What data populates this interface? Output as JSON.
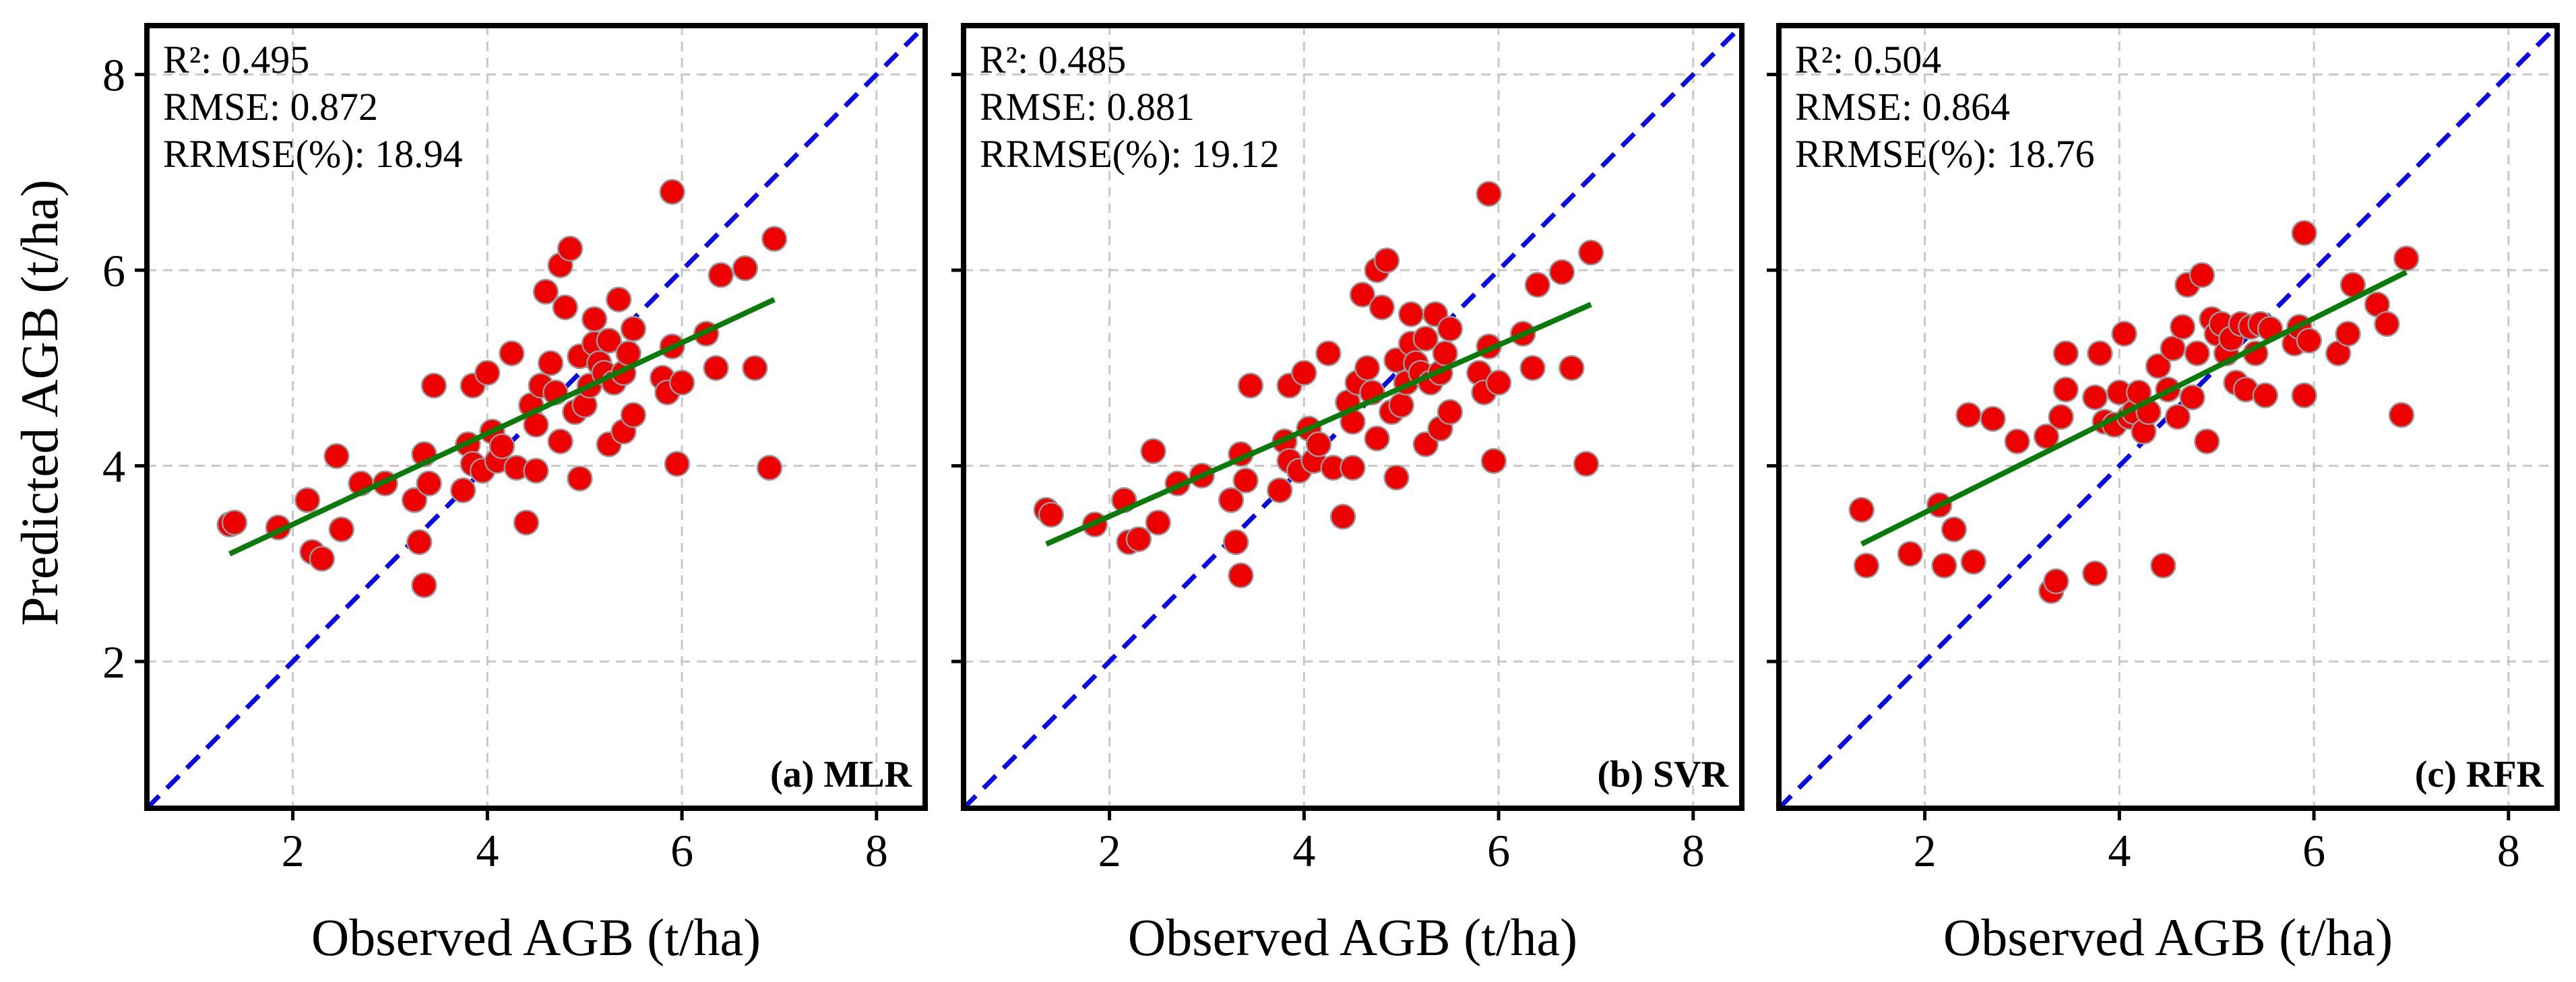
{
  "figure": {
    "y_axis_title": "Predicted AGB (t/ha)",
    "x_axis_title": "Observed AGB (t/ha)"
  },
  "colors": {
    "point_fill": "#ee0000",
    "point_stroke": "#999999",
    "fit_line": "#0a7a0a",
    "identity_line": "#0a0ae6",
    "grid": "#c8c8c8"
  },
  "chart_data": [
    {
      "type": "scatter",
      "label": "(a) MLR",
      "stats": {
        "r2": "R²: 0.495",
        "rmse": "RMSE: 0.872",
        "rrmse": "RRMSE(%): 18.94"
      },
      "xlim": [
        0.5,
        8.5
      ],
      "ylim": [
        0.5,
        8.5
      ],
      "xticks": [
        2,
        4,
        6,
        8
      ],
      "yticks": [
        2,
        4,
        6,
        8
      ],
      "grid": true,
      "identity_line": true,
      "fit_line": {
        "x": [
          1.35,
          6.95
        ],
        "y": [
          3.1,
          5.7
        ]
      },
      "points": [
        [
          1.35,
          3.4
        ],
        [
          1.4,
          3.42
        ],
        [
          1.85,
          3.37
        ],
        [
          2.15,
          3.65
        ],
        [
          2.2,
          3.12
        ],
        [
          2.3,
          3.05
        ],
        [
          2.45,
          4.1
        ],
        [
          2.5,
          3.35
        ],
        [
          2.7,
          3.82
        ],
        [
          2.95,
          3.82
        ],
        [
          3.25,
          3.65
        ],
        [
          3.3,
          3.22
        ],
        [
          3.35,
          2.78
        ],
        [
          3.35,
          4.12
        ],
        [
          3.4,
          3.82
        ],
        [
          3.45,
          4.82
        ],
        [
          3.75,
          3.75
        ],
        [
          3.8,
          4.22
        ],
        [
          3.85,
          4.02
        ],
        [
          3.85,
          4.82
        ],
        [
          3.95,
          3.95
        ],
        [
          4.0,
          4.95
        ],
        [
          4.05,
          4.35
        ],
        [
          4.1,
          4.05
        ],
        [
          4.15,
          4.2
        ],
        [
          4.25,
          5.15
        ],
        [
          4.3,
          3.98
        ],
        [
          4.4,
          3.42
        ],
        [
          4.45,
          4.62
        ],
        [
          4.5,
          4.42
        ],
        [
          4.5,
          3.95
        ],
        [
          4.55,
          4.82
        ],
        [
          4.6,
          5.78
        ],
        [
          4.65,
          5.05
        ],
        [
          4.7,
          4.75
        ],
        [
          4.75,
          6.05
        ],
        [
          4.75,
          4.25
        ],
        [
          4.8,
          5.62
        ],
        [
          4.85,
          6.22
        ],
        [
          4.9,
          4.55
        ],
        [
          4.95,
          3.87
        ],
        [
          4.95,
          5.12
        ],
        [
          5.0,
          4.62
        ],
        [
          5.05,
          4.82
        ],
        [
          5.1,
          5.25
        ],
        [
          5.1,
          5.5
        ],
        [
          5.15,
          5.05
        ],
        [
          5.2,
          4.95
        ],
        [
          5.25,
          4.22
        ],
        [
          5.25,
          5.28
        ],
        [
          5.3,
          4.85
        ],
        [
          5.35,
          5.7
        ],
        [
          5.4,
          4.35
        ],
        [
          5.4,
          4.95
        ],
        [
          5.45,
          5.15
        ],
        [
          5.5,
          4.52
        ],
        [
          5.5,
          5.4
        ],
        [
          5.8,
          4.9
        ],
        [
          5.85,
          4.75
        ],
        [
          5.9,
          6.8
        ],
        [
          5.9,
          5.22
        ],
        [
          5.95,
          4.02
        ],
        [
          6.0,
          4.85
        ],
        [
          6.25,
          5.35
        ],
        [
          6.35,
          5.0
        ],
        [
          6.4,
          5.95
        ],
        [
          6.65,
          6.02
        ],
        [
          6.75,
          5.0
        ],
        [
          6.9,
          3.98
        ],
        [
          6.95,
          6.32
        ]
      ]
    },
    {
      "type": "scatter",
      "label": "(b) SVR",
      "stats": {
        "r2": "R²: 0.485",
        "rmse": "RMSE: 0.881",
        "rrmse": "RRMSE(%): 19.12"
      },
      "xlim": [
        0.5,
        8.5
      ],
      "ylim": [
        0.5,
        8.5
      ],
      "xticks": [
        2,
        4,
        6,
        8
      ],
      "yticks": [
        2,
        4,
        6,
        8
      ],
      "grid": true,
      "identity_line": true,
      "fit_line": {
        "x": [
          1.35,
          6.95
        ],
        "y": [
          3.2,
          5.65
        ]
      },
      "points": [
        [
          1.35,
          3.55
        ],
        [
          1.4,
          3.5
        ],
        [
          1.85,
          3.4
        ],
        [
          2.15,
          3.65
        ],
        [
          2.2,
          3.22
        ],
        [
          2.3,
          3.25
        ],
        [
          2.45,
          4.15
        ],
        [
          2.5,
          3.42
        ],
        [
          2.7,
          3.82
        ],
        [
          2.95,
          3.9
        ],
        [
          3.25,
          3.65
        ],
        [
          3.3,
          3.22
        ],
        [
          3.35,
          2.88
        ],
        [
          3.35,
          4.12
        ],
        [
          3.4,
          3.85
        ],
        [
          3.45,
          4.82
        ],
        [
          3.75,
          3.75
        ],
        [
          3.8,
          4.25
        ],
        [
          3.85,
          4.05
        ],
        [
          3.85,
          4.82
        ],
        [
          3.95,
          3.95
        ],
        [
          4.0,
          4.95
        ],
        [
          4.05,
          4.38
        ],
        [
          4.1,
          4.05
        ],
        [
          4.15,
          4.22
        ],
        [
          4.25,
          5.15
        ],
        [
          4.3,
          3.98
        ],
        [
          4.4,
          3.48
        ],
        [
          4.45,
          4.65
        ],
        [
          4.5,
          4.45
        ],
        [
          4.5,
          3.98
        ],
        [
          4.55,
          4.85
        ],
        [
          4.6,
          5.75
        ],
        [
          4.65,
          5.0
        ],
        [
          4.7,
          4.75
        ],
        [
          4.75,
          6.0
        ],
        [
          4.75,
          4.28
        ],
        [
          4.8,
          5.62
        ],
        [
          4.85,
          6.1
        ],
        [
          4.9,
          4.55
        ],
        [
          4.95,
          3.88
        ],
        [
          4.95,
          5.08
        ],
        [
          5.0,
          4.62
        ],
        [
          5.05,
          4.85
        ],
        [
          5.1,
          5.25
        ],
        [
          5.1,
          5.55
        ],
        [
          5.15,
          5.05
        ],
        [
          5.2,
          4.95
        ],
        [
          5.25,
          4.22
        ],
        [
          5.25,
          5.3
        ],
        [
          5.3,
          4.85
        ],
        [
          5.35,
          5.55
        ],
        [
          5.4,
          4.38
        ],
        [
          5.4,
          4.95
        ],
        [
          5.45,
          5.15
        ],
        [
          5.5,
          4.55
        ],
        [
          5.5,
          5.4
        ],
        [
          5.8,
          4.95
        ],
        [
          5.85,
          4.75
        ],
        [
          5.9,
          6.78
        ],
        [
          5.9,
          5.22
        ],
        [
          5.95,
          4.05
        ],
        [
          6.0,
          4.85
        ],
        [
          6.25,
          5.35
        ],
        [
          6.35,
          5.0
        ],
        [
          6.4,
          5.85
        ],
        [
          6.65,
          5.98
        ],
        [
          6.75,
          5.0
        ],
        [
          6.9,
          4.02
        ],
        [
          6.95,
          6.18
        ]
      ]
    },
    {
      "type": "scatter",
      "label": "(c) RFR",
      "stats": {
        "r2": "R²: 0.504",
        "rmse": "RMSE: 0.864",
        "rrmse": "RRMSE(%): 18.76"
      },
      "xlim": [
        0.5,
        8.5
      ],
      "ylim": [
        0.5,
        8.5
      ],
      "xticks": [
        2,
        4,
        6,
        8
      ],
      "yticks": [
        2,
        4,
        6,
        8
      ],
      "grid": true,
      "identity_line": true,
      "fit_line": {
        "x": [
          1.35,
          6.95
        ],
        "y": [
          3.2,
          5.98
        ]
      },
      "points": [
        [
          1.35,
          3.55
        ],
        [
          1.4,
          2.98
        ],
        [
          1.85,
          3.1
        ],
        [
          2.15,
          3.6
        ],
        [
          2.2,
          2.98
        ],
        [
          2.3,
          3.35
        ],
        [
          2.45,
          4.52
        ],
        [
          2.5,
          3.02
        ],
        [
          2.7,
          4.48
        ],
        [
          2.95,
          4.25
        ],
        [
          3.25,
          4.3
        ],
        [
          3.3,
          2.72
        ],
        [
          3.35,
          2.82
        ],
        [
          3.4,
          4.5
        ],
        [
          3.45,
          5.15
        ],
        [
          3.45,
          4.78
        ],
        [
          3.75,
          4.7
        ],
        [
          3.75,
          2.9
        ],
        [
          3.8,
          5.15
        ],
        [
          3.85,
          4.45
        ],
        [
          3.95,
          4.42
        ],
        [
          4.0,
          4.75
        ],
        [
          4.05,
          5.35
        ],
        [
          4.1,
          4.5
        ],
        [
          4.15,
          4.55
        ],
        [
          4.2,
          4.75
        ],
        [
          4.25,
          4.35
        ],
        [
          4.3,
          4.55
        ],
        [
          4.4,
          5.02
        ],
        [
          4.45,
          2.98
        ],
        [
          4.5,
          4.78
        ],
        [
          4.55,
          5.2
        ],
        [
          4.6,
          4.5
        ],
        [
          4.65,
          5.42
        ],
        [
          4.7,
          5.85
        ],
        [
          4.75,
          4.7
        ],
        [
          4.8,
          5.15
        ],
        [
          4.85,
          5.95
        ],
        [
          4.9,
          4.25
        ],
        [
          4.95,
          5.5
        ],
        [
          5.0,
          5.35
        ],
        [
          5.05,
          5.45
        ],
        [
          5.1,
          5.15
        ],
        [
          5.15,
          5.3
        ],
        [
          5.2,
          4.85
        ],
        [
          5.25,
          5.45
        ],
        [
          5.3,
          4.78
        ],
        [
          5.35,
          5.42
        ],
        [
          5.4,
          5.15
        ],
        [
          5.45,
          5.45
        ],
        [
          5.5,
          4.72
        ],
        [
          5.55,
          5.4
        ],
        [
          5.8,
          5.25
        ],
        [
          5.85,
          5.42
        ],
        [
          5.9,
          6.38
        ],
        [
          5.9,
          4.72
        ],
        [
          5.95,
          5.28
        ],
        [
          6.25,
          5.15
        ],
        [
          6.35,
          5.35
        ],
        [
          6.4,
          5.85
        ],
        [
          6.65,
          5.65
        ],
        [
          6.75,
          5.45
        ],
        [
          6.9,
          4.52
        ],
        [
          6.95,
          6.12
        ]
      ]
    }
  ]
}
